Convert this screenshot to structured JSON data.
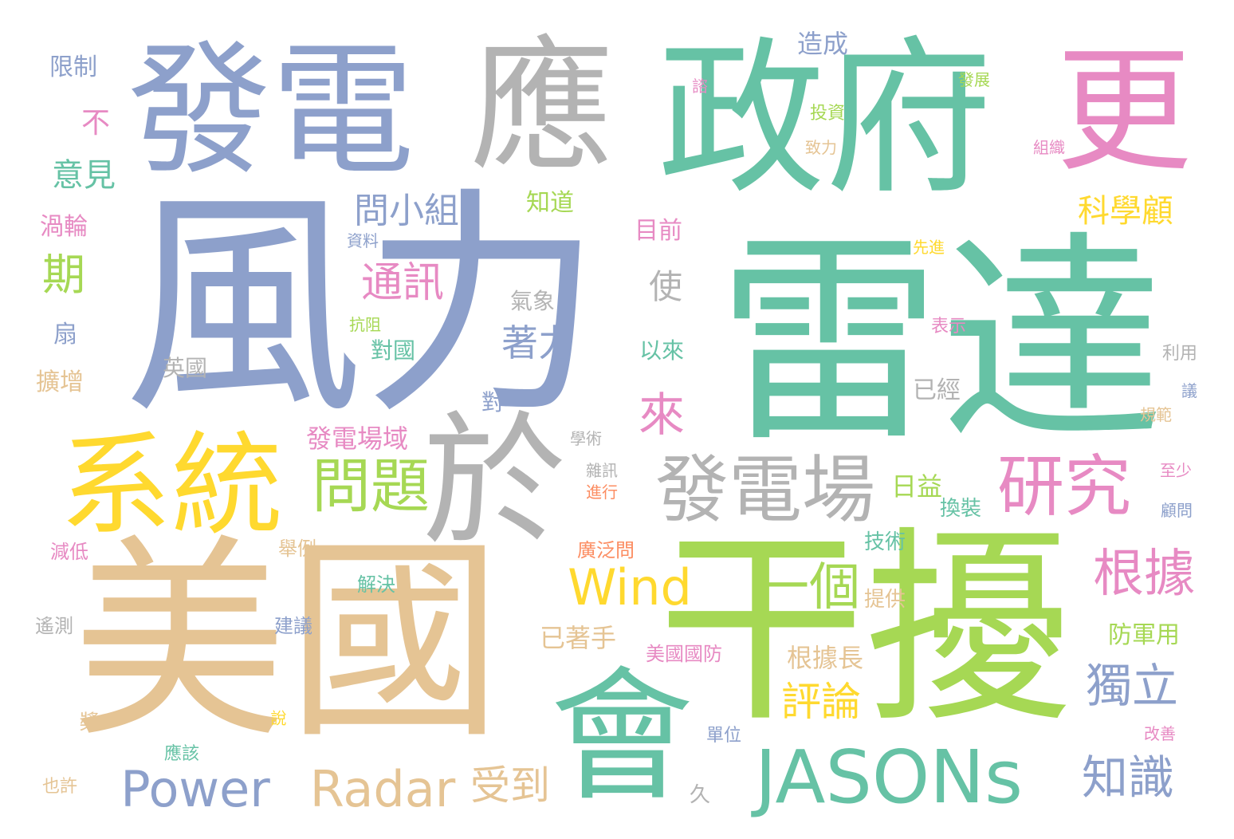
{
  "words": [
    {
      "text": "風力"
    },
    {
      "text": "雷達"
    },
    {
      "text": "干擾"
    },
    {
      "text": "美國"
    },
    {
      "text": "政府"
    },
    {
      "text": "發電"
    },
    {
      "text": "應"
    },
    {
      "text": "更"
    },
    {
      "text": "於"
    },
    {
      "text": "會"
    },
    {
      "text": "系統"
    },
    {
      "text": "JASONs"
    },
    {
      "text": "發電場"
    },
    {
      "text": "研究"
    },
    {
      "text": "問題"
    },
    {
      "text": "Power"
    },
    {
      "text": "Radar"
    },
    {
      "text": "Wind"
    },
    {
      "text": "一個"
    },
    {
      "text": "根據"
    },
    {
      "text": "獨立"
    },
    {
      "text": "知識"
    },
    {
      "text": "來"
    },
    {
      "text": "評論"
    },
    {
      "text": "受到"
    },
    {
      "text": "通訊"
    },
    {
      "text": "問小組"
    },
    {
      "text": "著力"
    },
    {
      "text": "科學顧"
    },
    {
      "text": "期"
    },
    {
      "text": "意見"
    },
    {
      "text": "使"
    },
    {
      "text": "根據長"
    },
    {
      "text": "已著手"
    },
    {
      "text": "發電場域"
    },
    {
      "text": "日益"
    },
    {
      "text": "造成"
    },
    {
      "text": "限制"
    },
    {
      "text": "不"
    },
    {
      "text": "渦輪"
    },
    {
      "text": "扇"
    },
    {
      "text": "擴增"
    },
    {
      "text": "知道"
    },
    {
      "text": "目前"
    },
    {
      "text": "以來"
    },
    {
      "text": "氣象"
    },
    {
      "text": "對國"
    },
    {
      "text": "英國"
    },
    {
      "text": "對"
    },
    {
      "text": "已經"
    },
    {
      "text": "防軍用"
    },
    {
      "text": "美國國防"
    },
    {
      "text": "技術"
    },
    {
      "text": "提供"
    },
    {
      "text": "換裝"
    },
    {
      "text": "廣泛問"
    },
    {
      "text": "解決"
    },
    {
      "text": "舉例"
    },
    {
      "text": "減低"
    },
    {
      "text": "遙測"
    },
    {
      "text": "建議"
    },
    {
      "text": "單位"
    },
    {
      "text": "應該"
    },
    {
      "text": "也許"
    },
    {
      "text": "久"
    },
    {
      "text": "發展"
    },
    {
      "text": "投資"
    },
    {
      "text": "致力"
    },
    {
      "text": "組織"
    },
    {
      "text": "諮"
    },
    {
      "text": "資料"
    },
    {
      "text": "抗阻"
    },
    {
      "text": "先進"
    },
    {
      "text": "表示"
    },
    {
      "text": "利用"
    },
    {
      "text": "議"
    },
    {
      "text": "規範"
    },
    {
      "text": "至少"
    },
    {
      "text": "顧問"
    },
    {
      "text": "改善"
    },
    {
      "text": "學術"
    },
    {
      "text": "雜訊"
    },
    {
      "text": "進行"
    },
    {
      "text": "槳"
    },
    {
      "text": "說"
    }
  ]
}
